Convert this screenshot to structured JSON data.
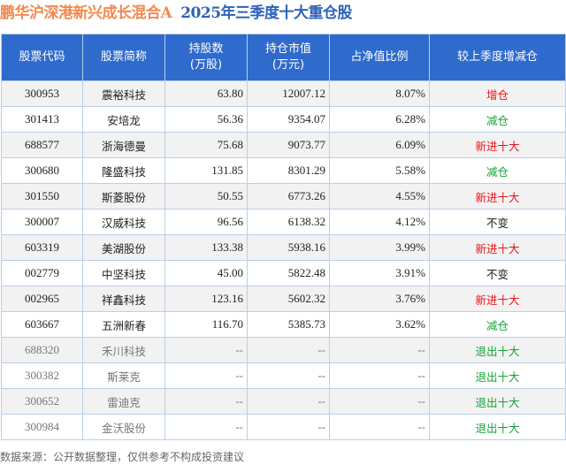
{
  "title": {
    "fund": "鹏华沪深港新兴成长混合A",
    "subtitle": "2025年三季度十大重仓股"
  },
  "colors": {
    "header_bg": "#2f6bcc",
    "title_fund": "#f2894f",
    "title_sub": "#2d63b8",
    "increase": "#e8141a",
    "decrease": "#17a33a"
  },
  "columns": [
    "股票代码",
    "股票简称",
    "持股数\n(万股)",
    "持仓市值\n(万元)",
    "占净值比例",
    "较上季度增减仓"
  ],
  "rows": [
    {
      "code": "300953",
      "name": "震裕科技",
      "shares": "63.80",
      "value": "12007.12",
      "ratio": "8.07%",
      "change": "增仓",
      "tone": "red"
    },
    {
      "code": "301413",
      "name": "安培龙",
      "shares": "56.36",
      "value": "9354.07",
      "ratio": "6.28%",
      "change": "减仓",
      "tone": "green"
    },
    {
      "code": "688577",
      "name": "浙海德曼",
      "shares": "75.68",
      "value": "9073.77",
      "ratio": "6.09%",
      "change": "新进十大",
      "tone": "red"
    },
    {
      "code": "300680",
      "name": "隆盛科技",
      "shares": "131.85",
      "value": "8301.29",
      "ratio": "5.58%",
      "change": "减仓",
      "tone": "green"
    },
    {
      "code": "301550",
      "name": "斯菱股份",
      "shares": "50.55",
      "value": "6773.26",
      "ratio": "4.55%",
      "change": "新进十大",
      "tone": "red"
    },
    {
      "code": "300007",
      "name": "汉威科技",
      "shares": "96.56",
      "value": "6138.32",
      "ratio": "4.12%",
      "change": "不变",
      "tone": "black"
    },
    {
      "code": "603319",
      "name": "美湖股份",
      "shares": "133.38",
      "value": "5938.16",
      "ratio": "3.99%",
      "change": "新进十大",
      "tone": "red"
    },
    {
      "code": "002779",
      "name": "中坚科技",
      "shares": "45.00",
      "value": "5822.48",
      "ratio": "3.91%",
      "change": "不变",
      "tone": "black"
    },
    {
      "code": "002965",
      "name": "祥鑫科技",
      "shares": "123.16",
      "value": "5602.32",
      "ratio": "3.76%",
      "change": "新进十大",
      "tone": "red"
    },
    {
      "code": "603667",
      "name": "五洲新春",
      "shares": "116.70",
      "value": "5385.73",
      "ratio": "3.62%",
      "change": "减仓",
      "tone": "green"
    },
    {
      "code": "688320",
      "name": "禾川科技",
      "shares": "--",
      "value": "--",
      "ratio": "--",
      "change": "退出十大",
      "tone": "green",
      "exited": true
    },
    {
      "code": "300382",
      "name": "斯莱克",
      "shares": "--",
      "value": "--",
      "ratio": "--",
      "change": "退出十大",
      "tone": "green",
      "exited": true
    },
    {
      "code": "300652",
      "name": "雷迪克",
      "shares": "--",
      "value": "--",
      "ratio": "--",
      "change": "退出十大",
      "tone": "green",
      "exited": true
    },
    {
      "code": "300984",
      "name": "金沃股份",
      "shares": "--",
      "value": "--",
      "ratio": "--",
      "change": "退出十大",
      "tone": "green",
      "exited": true
    }
  ],
  "footer": "数据来源：公开数据整理，仅供参考不构成投资建议"
}
